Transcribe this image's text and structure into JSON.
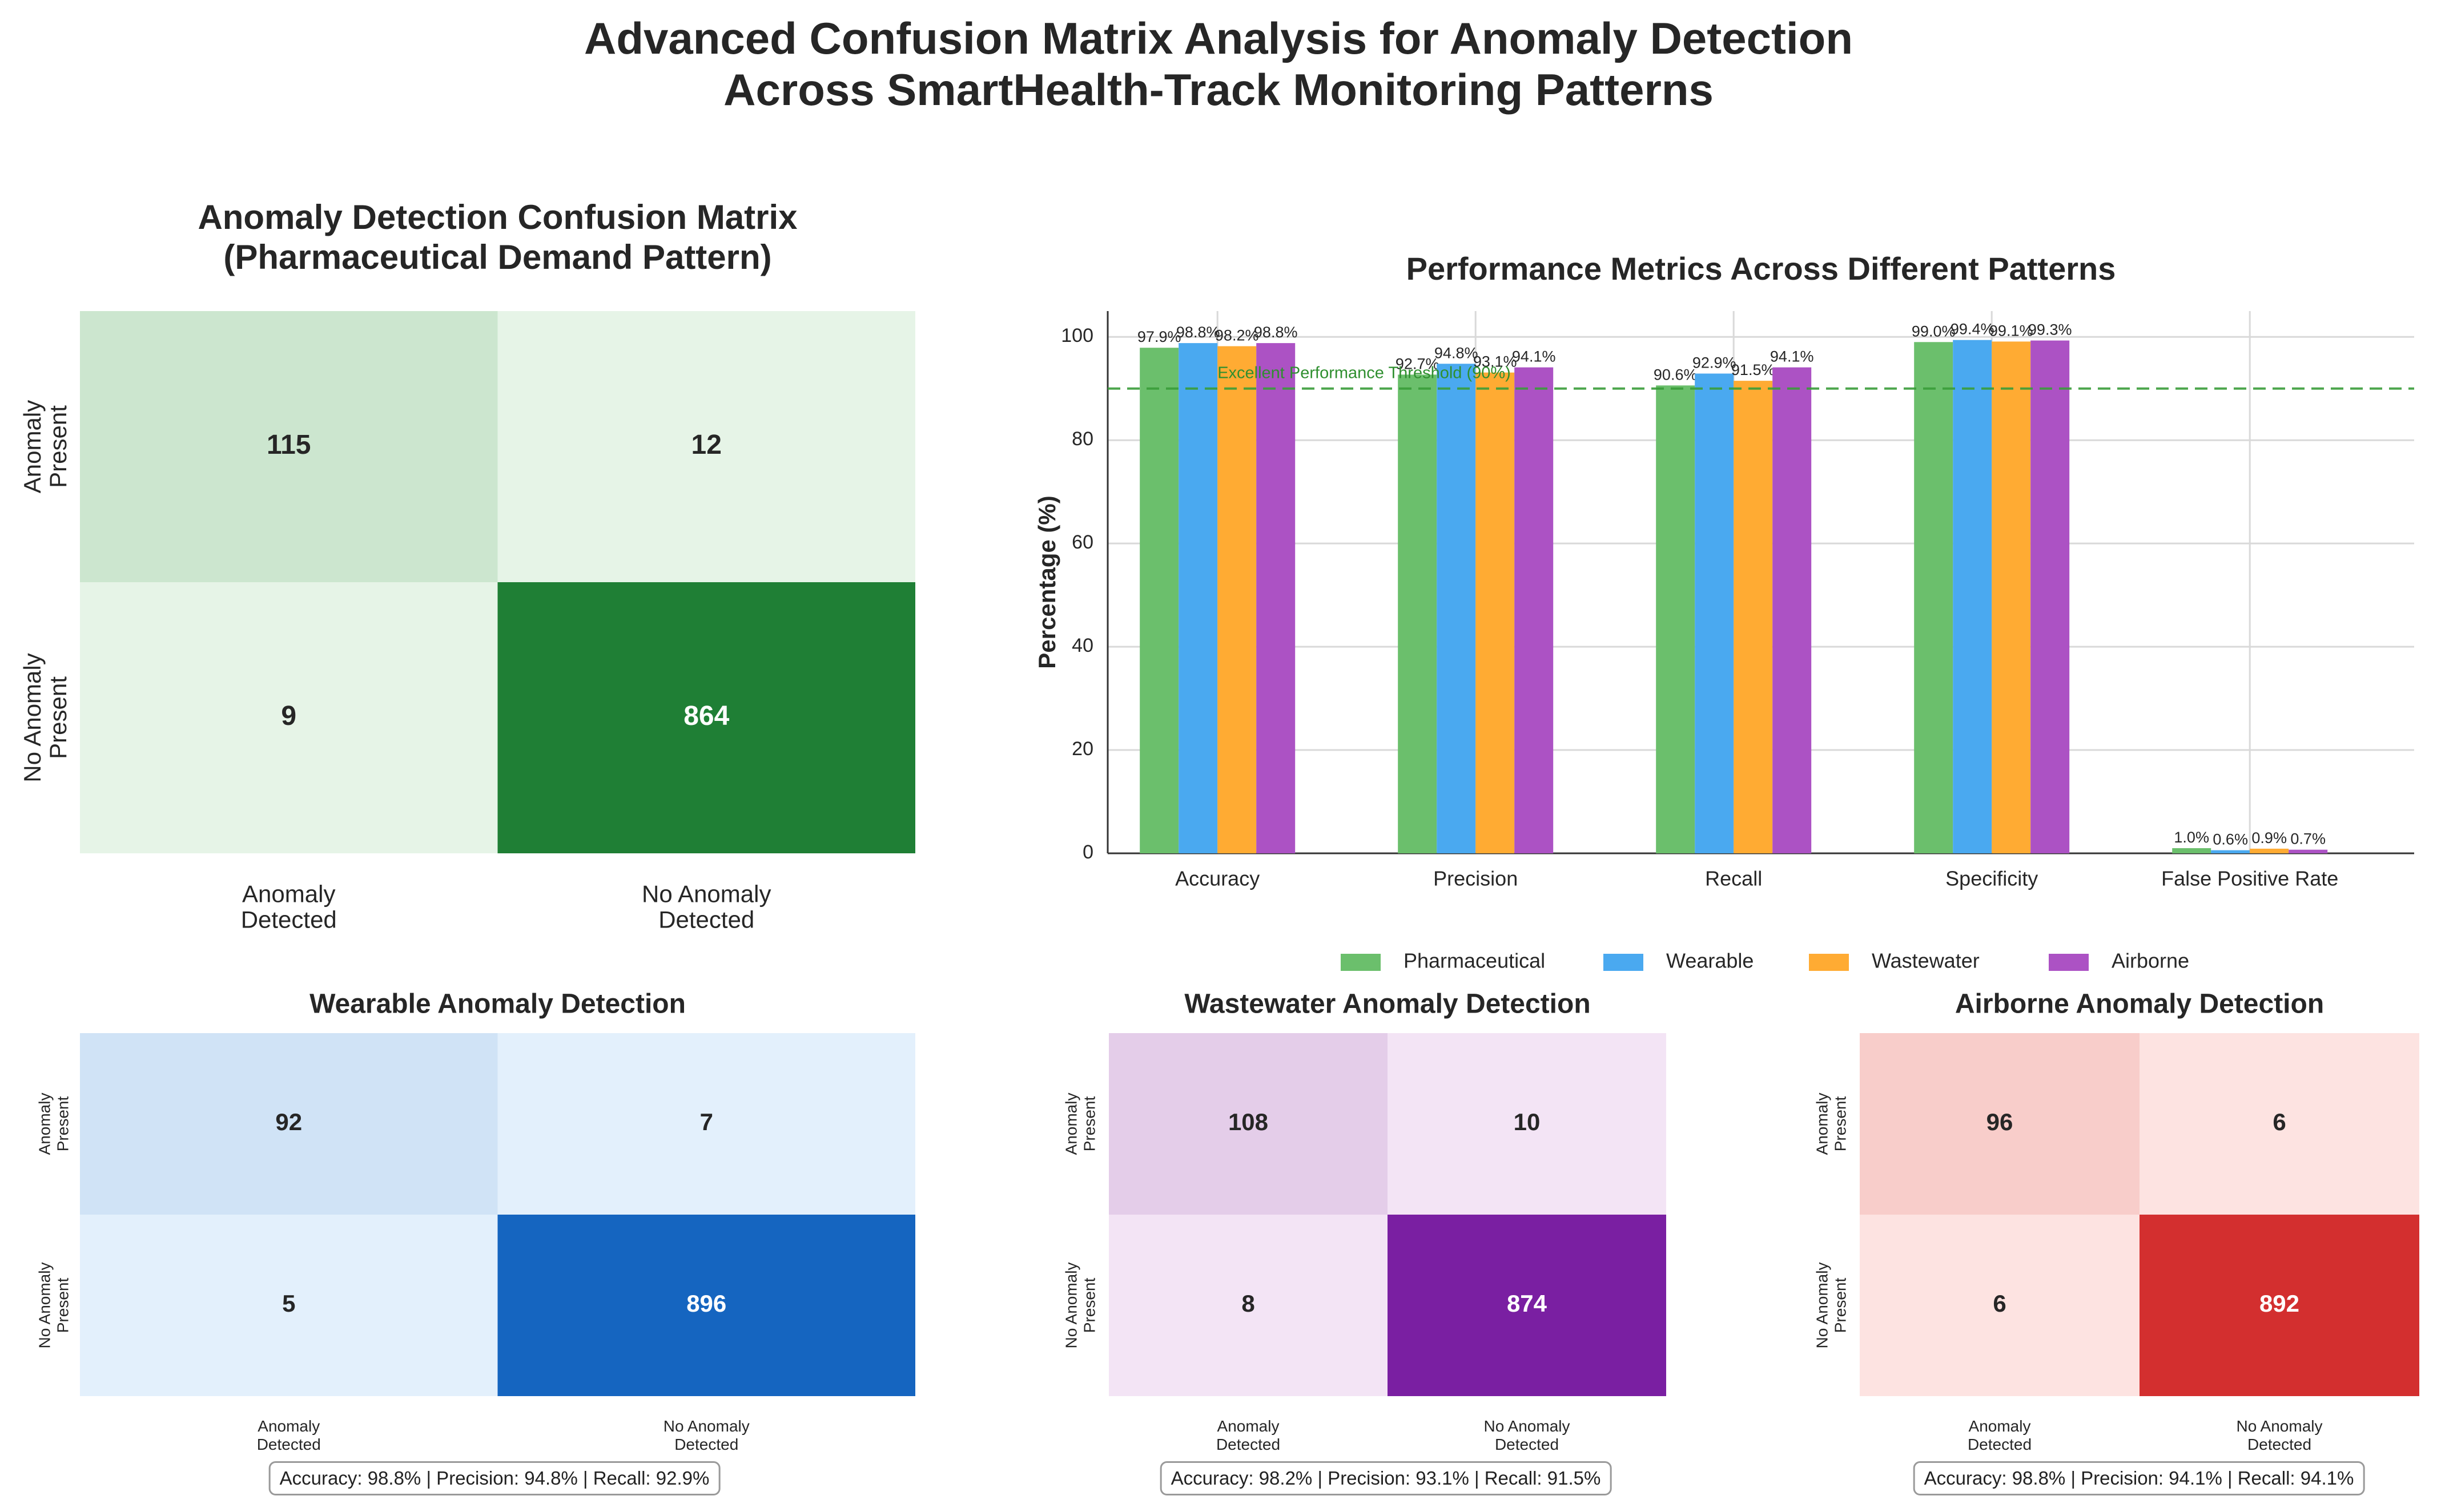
{
  "suptitle": {
    "line1": "Advanced Confusion Matrix Analysis for Anomaly Detection",
    "line2": "Across SmartHealth-Track Monitoring Patterns"
  },
  "chart_data": [
    {
      "type": "heatmap",
      "id": "pharma",
      "title": [
        "Anomaly Detection Confusion Matrix",
        "(Pharmaceutical Demand Pattern)"
      ],
      "row_labels": [
        [
          "Anomaly",
          "Present"
        ],
        [
          "No Anomaly",
          "Present"
        ]
      ],
      "col_labels": [
        [
          "Anomaly",
          "Detected"
        ],
        [
          "No Anomaly",
          "Detected"
        ]
      ],
      "values": [
        [
          115,
          12
        ],
        [
          9,
          864
        ]
      ],
      "colors": [
        [
          "#cce6cf",
          "#e6f4e7"
        ],
        [
          "#e6f4e7",
          "#1f7f35"
        ]
      ],
      "text_colors": [
        [
          "#262626",
          "#262626"
        ],
        [
          "#262626",
          "#ffffff"
        ]
      ]
    },
    {
      "type": "bar",
      "id": "metrics",
      "title": "Performance Metrics Across Different Patterns",
      "categories": [
        "Accuracy",
        "Precision",
        "Recall",
        "Specificity",
        "False Positive Rate"
      ],
      "ylabel": "Percentage (%)",
      "ylim": [
        0,
        105
      ],
      "yticks": [
        0,
        20,
        40,
        60,
        80,
        100
      ],
      "series": [
        {
          "name": "Pharmaceutical",
          "color": "#6bbf6c",
          "values": [
            97.9,
            92.7,
            90.6,
            99.0,
            1.0
          ],
          "labels": [
            "97.9%",
            "92.7%",
            "90.6%",
            "99.0%",
            "1.0%"
          ]
        },
        {
          "name": "Wearable",
          "color": "#4aa9f0",
          "values": [
            98.8,
            94.8,
            92.9,
            99.4,
            0.6
          ],
          "labels": [
            "98.8%",
            "94.8%",
            "92.9%",
            "99.4%",
            "0.6%"
          ]
        },
        {
          "name": "Wastewater",
          "color": "#ffab33",
          "values": [
            98.2,
            93.1,
            91.5,
            99.1,
            0.9
          ],
          "labels": [
            "98.2%",
            "93.1%",
            "91.5%",
            "99.1%",
            "0.9%"
          ]
        },
        {
          "name": "Airborne",
          "color": "#ac52c4",
          "values": [
            98.8,
            94.1,
            94.1,
            99.3,
            0.7
          ],
          "labels": [
            "98.8%",
            "94.1%",
            "94.1%",
            "99.3%",
            "0.7%"
          ]
        }
      ],
      "threshold": {
        "value": 90,
        "label": "Excellent Performance Threshold (90%)",
        "color": "#3a9d3a"
      },
      "legend_position": "bottom-center",
      "grid": true
    },
    {
      "type": "heatmap",
      "id": "wearable",
      "title": "Wearable Anomaly Detection",
      "row_labels": [
        [
          "Anomaly",
          "Present"
        ],
        [
          "No Anomaly",
          "Present"
        ]
      ],
      "col_labels": [
        [
          "Anomaly",
          "Detected"
        ],
        [
          "No Anomaly",
          "Detected"
        ]
      ],
      "values": [
        [
          92,
          7
        ],
        [
          5,
          896
        ]
      ],
      "colors": [
        [
          "#d0e3f6",
          "#e3f0fc"
        ],
        [
          "#e3f0fc",
          "#1565c0"
        ]
      ],
      "text_colors": [
        [
          "#262626",
          "#262626"
        ],
        [
          "#262626",
          "#ffffff"
        ]
      ],
      "summary": "Accuracy: 98.8% | Precision: 94.8% | Recall: 92.9%"
    },
    {
      "type": "heatmap",
      "id": "wastewater",
      "title": "Wastewater Anomaly Detection",
      "row_labels": [
        [
          "Anomaly",
          "Present"
        ],
        [
          "No Anomaly",
          "Present"
        ]
      ],
      "col_labels": [
        [
          "Anomaly",
          "Detected"
        ],
        [
          "No Anomaly",
          "Detected"
        ]
      ],
      "values": [
        [
          108,
          10
        ],
        [
          8,
          874
        ]
      ],
      "colors": [
        [
          "#e4cde9",
          "#f3e4f5"
        ],
        [
          "#f3e4f5",
          "#7a1fa2"
        ]
      ],
      "text_colors": [
        [
          "#262626",
          "#262626"
        ],
        [
          "#262626",
          "#ffffff"
        ]
      ],
      "summary": "Accuracy: 98.2% | Precision: 93.1% | Recall: 91.5%"
    },
    {
      "type": "heatmap",
      "id": "airborne",
      "title": "Airborne Anomaly Detection",
      "row_labels": [
        [
          "Anomaly",
          "Present"
        ],
        [
          "No Anomaly",
          "Present"
        ]
      ],
      "col_labels": [
        [
          "Anomaly",
          "Detected"
        ],
        [
          "No Anomaly",
          "Detected"
        ]
      ],
      "values": [
        [
          96,
          6
        ],
        [
          6,
          892
        ]
      ],
      "colors": [
        [
          "#f8cdca",
          "#fde3e1"
        ],
        [
          "#fde3e1",
          "#d32f2f"
        ]
      ],
      "text_colors": [
        [
          "#262626",
          "#262626"
        ],
        [
          "#262626",
          "#ffffff"
        ]
      ],
      "summary": "Accuracy: 98.8% | Precision: 94.1% | Recall: 94.1%"
    }
  ]
}
